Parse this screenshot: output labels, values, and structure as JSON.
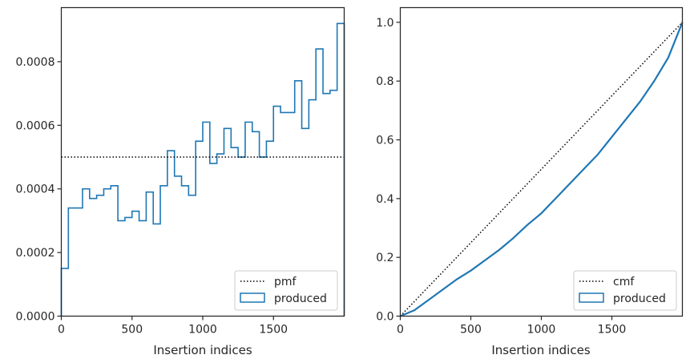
{
  "chart_data": [
    {
      "type": "histogram",
      "xlabel": "Insertion indices",
      "ylabel": "",
      "xlim": [
        0,
        2000
      ],
      "ylim": [
        0,
        0.00097
      ],
      "xticks": [
        0,
        500,
        1000,
        1500
      ],
      "xtick_labels": [
        "0",
        "500",
        "1000",
        "1500"
      ],
      "yticks": [
        0,
        0.0002,
        0.0004,
        0.0006,
        0.0008
      ],
      "ytick_labels": [
        "0.0000",
        "0.0002",
        "0.0004",
        "0.0006",
        "0.0008"
      ],
      "grid": false,
      "legend": {
        "placement": "bottom-right",
        "entries": [
          "pmf",
          "produced"
        ]
      },
      "series": [
        {
          "name": "produced",
          "kind": "step-histogram",
          "color": "#1f77b4",
          "bin_edges": [
            0,
            50,
            100,
            150,
            200,
            250,
            300,
            350,
            400,
            450,
            500,
            550,
            600,
            650,
            700,
            750,
            800,
            850,
            900,
            950,
            1000,
            1050,
            1100,
            1150,
            1200,
            1250,
            1300,
            1350,
            1400,
            1450,
            1500,
            1550,
            1600,
            1650,
            1700,
            1750,
            1800,
            1850,
            1900,
            1950,
            2000
          ],
          "values": [
            0.00015,
            0.00034,
            0.00034,
            0.0004,
            0.00037,
            0.00038,
            0.0004,
            0.00041,
            0.0003,
            0.00031,
            0.00033,
            0.0003,
            0.00039,
            0.00029,
            0.00041,
            0.00052,
            0.00044,
            0.00041,
            0.00038,
            0.00055,
            0.00061,
            0.00048,
            0.00051,
            0.00059,
            0.00053,
            0.0005,
            0.00061,
            0.00058,
            0.0005,
            0.00055,
            0.00066,
            0.00064,
            0.00064,
            0.00074,
            0.00059,
            0.00068,
            0.00084,
            0.0007,
            0.00071,
            0.00092
          ]
        },
        {
          "name": "pmf",
          "kind": "hline",
          "color": "#000000",
          "linestyle": "dotted",
          "y": 0.0005
        }
      ]
    },
    {
      "type": "line",
      "xlabel": "Insertion indices",
      "ylabel": "",
      "xlim": [
        0,
        2000
      ],
      "ylim": [
        0,
        1.05
      ],
      "xticks": [
        0,
        500,
        1000,
        1500
      ],
      "xtick_labels": [
        "0",
        "500",
        "1000",
        "1500"
      ],
      "yticks": [
        0,
        0.2,
        0.4,
        0.6,
        0.8,
        1.0
      ],
      "ytick_labels": [
        "0.0",
        "0.2",
        "0.4",
        "0.6",
        "0.8",
        "1.0"
      ],
      "grid": false,
      "legend": {
        "placement": "bottom-right",
        "entries": [
          "cmf",
          "produced"
        ]
      },
      "series": [
        {
          "name": "cmf",
          "kind": "line",
          "color": "#000000",
          "linestyle": "dotted",
          "x": [
            0,
            2000
          ],
          "y": [
            0,
            1.0
          ]
        },
        {
          "name": "produced",
          "kind": "line",
          "color": "#1f77b4",
          "x": [
            0,
            100,
            200,
            300,
            400,
            500,
            600,
            700,
            800,
            900,
            1000,
            1100,
            1200,
            1300,
            1400,
            1500,
            1600,
            1700,
            1800,
            1900,
            2000
          ],
          "y": [
            0,
            0.02,
            0.055,
            0.09,
            0.125,
            0.155,
            0.19,
            0.225,
            0.265,
            0.31,
            0.35,
            0.4,
            0.45,
            0.5,
            0.55,
            0.61,
            0.67,
            0.73,
            0.8,
            0.88,
            1.0
          ]
        }
      ]
    }
  ]
}
